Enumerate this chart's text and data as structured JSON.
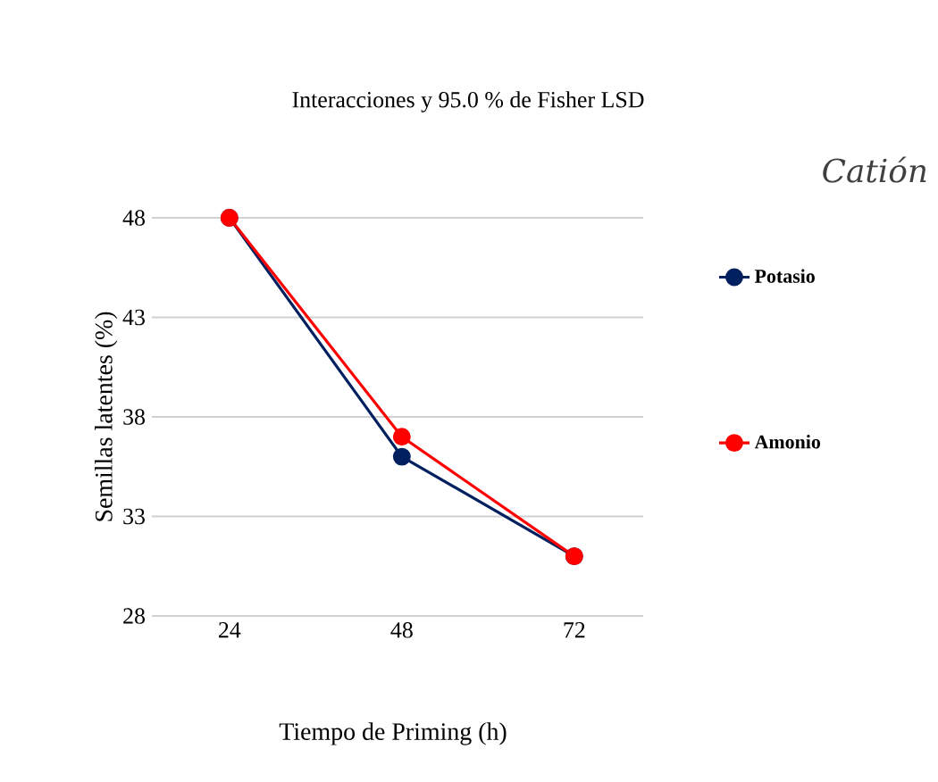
{
  "chart_data": {
    "type": "line",
    "title": "Interacciones y 95.0 % de Fisher LSD",
    "xlabel": "Tiempo de Priming (h)",
    "ylabel": "Semillas latentes (%)",
    "legend_title": "Catión",
    "categories": [
      "24",
      "48",
      "72"
    ],
    "series": [
      {
        "name": "Potasio",
        "color": "#002060",
        "values": [
          48,
          36,
          31
        ]
      },
      {
        "name": "Amonio",
        "color": "#ff0000",
        "values": [
          48,
          37,
          31
        ]
      }
    ],
    "ylim": [
      28,
      48
    ],
    "yticks": [
      28,
      33,
      38,
      43,
      48
    ],
    "grid": "y",
    "legend": "right",
    "marker": "circle",
    "line_style": "solid"
  }
}
